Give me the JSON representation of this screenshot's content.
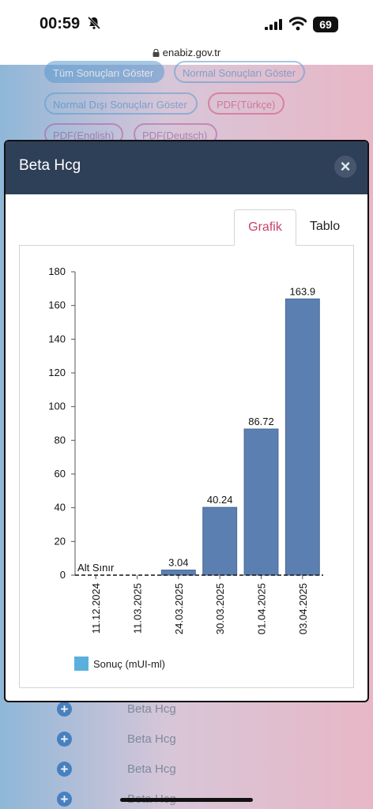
{
  "status": {
    "time": "00:59",
    "battery": "69"
  },
  "browser": {
    "url": "enabiz.gov.tr"
  },
  "background_buttons": [
    "Tüm Sonuçları Göster",
    "Normal Sonuçları Göster",
    "Normal Dışı Sonuçları Göster",
    "PDF(Türkçe)",
    "PDF(English)",
    "PDF(Deutsch)"
  ],
  "background_list": [
    "Beta Hcg",
    "Beta Hcg",
    "Beta Hcg",
    "Beta Hcg"
  ],
  "modal": {
    "title": "Beta Hcg",
    "close_symbol": "×",
    "tabs": [
      {
        "label": "Grafik",
        "active": true
      },
      {
        "label": "Tablo",
        "active": false
      }
    ]
  },
  "colors": {
    "bar": "#5b7fb0",
    "legend_swatch": "#5ab0dc",
    "header": "#2e3f58",
    "active_tab": "#c8426a"
  },
  "chart_data": {
    "type": "bar",
    "categories": [
      "11.12.2024",
      "11.03.2025",
      "24.03.2025",
      "30.03.2025",
      "01.04.2025",
      "03.04.2025"
    ],
    "series": [
      {
        "name": "Sonuç (mUI-ml)",
        "values": [
          0,
          0,
          3.04,
          40.24,
          86.72,
          163.9
        ]
      }
    ],
    "value_labels": [
      "Alt Sınır",
      "",
      "3.04",
      "40.24",
      "86.72",
      "163.9"
    ],
    "ylim": [
      0,
      180
    ],
    "yticks": [
      0,
      20,
      40,
      60,
      80,
      100,
      120,
      140,
      160,
      180
    ],
    "reference_line": 0,
    "legend_position": "bottom-left",
    "grid": false
  }
}
